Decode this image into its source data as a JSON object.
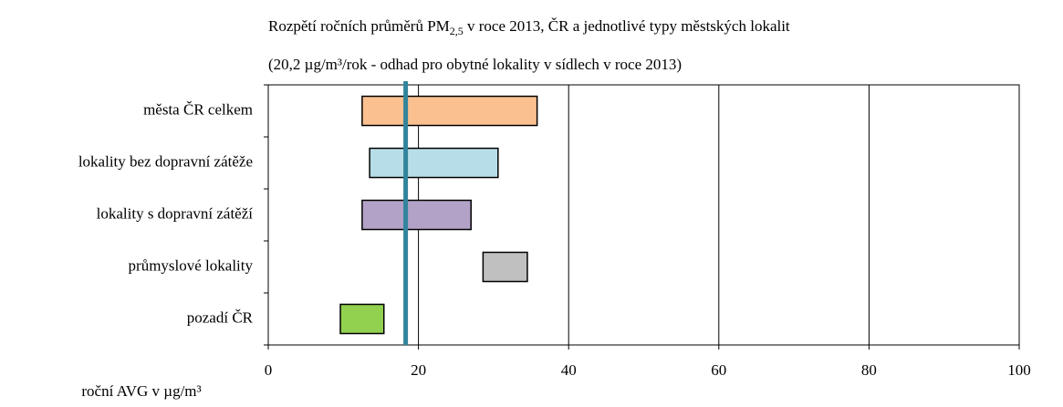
{
  "chart_data": {
    "type": "floating-bar",
    "title": [
      "Rozpětí ročních průměrů PM",
      "2,5",
      " v roce 2013, ČR a jednotlivé typy městských lokalit"
    ],
    "subtitle": "(20,2 µg/m³/rok - odhad pro obytné lokality v sídlech v roce 2013)",
    "x_label": "roční AVG v µg/m³",
    "categories": [
      "města ČR celkem",
      "lokality bez dopravní zátěže",
      "lokality s dopravní zátěží",
      "průmyslové lokality",
      "pozadí ČR"
    ],
    "values": [
      [
        12.5,
        35.8
      ],
      [
        13.5,
        30.6
      ],
      [
        12.5,
        27.0
      ],
      [
        28.6,
        34.5
      ],
      [
        9.6,
        15.4
      ]
    ],
    "colors": [
      "#fac090",
      "#b7dee8",
      "#b3a2c7",
      "#c0c0c0",
      "#92d050"
    ],
    "reference_line": 18.3,
    "reference_color": "#31849b",
    "xlim": [
      0,
      100
    ],
    "xticks": [
      0,
      20,
      40,
      60,
      80,
      100
    ],
    "grid": true
  }
}
